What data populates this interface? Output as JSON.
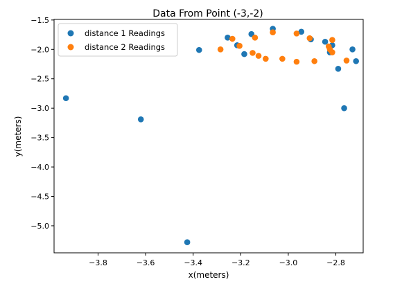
{
  "chart_data": {
    "type": "scatter",
    "title": "Data From Point (-3,-2)",
    "xlabel": "x(meters)",
    "ylabel": "y(meters)",
    "xlim": [
      -3.985,
      -2.685
    ],
    "ylim": [
      -5.46,
      -1.49
    ],
    "xticks": [
      -3.8,
      -3.6,
      -3.4,
      -3.2,
      -3.0,
      -2.8
    ],
    "xtick_labels": [
      "−3.8",
      "−3.6",
      "−3.4",
      "−3.2",
      "−3.0",
      "−2.8"
    ],
    "yticks": [
      -1.5,
      -2.0,
      -2.5,
      -3.0,
      -3.5,
      -4.0,
      -4.5,
      -5.0
    ],
    "ytick_labels": [
      "−1.5",
      "−2.0",
      "−2.5",
      "−3.0",
      "−3.5",
      "−4.0",
      "−4.5",
      "−5.0"
    ],
    "grid": false,
    "legend_position": "top-left",
    "series": [
      {
        "name": "distance 1 Readings",
        "color": "#1f77b4",
        "points": [
          [
            -3.935,
            -2.83
          ],
          [
            -3.62,
            -3.19
          ],
          [
            -3.425,
            -5.28
          ],
          [
            -3.375,
            -2.01
          ],
          [
            -3.255,
            -1.8
          ],
          [
            -3.215,
            -1.93
          ],
          [
            -3.185,
            -2.08
          ],
          [
            -3.155,
            -1.74
          ],
          [
            -3.065,
            -1.65
          ],
          [
            -2.945,
            -1.7
          ],
          [
            -2.905,
            -1.83
          ],
          [
            -2.845,
            -1.87
          ],
          [
            -2.825,
            -2.05
          ],
          [
            -2.815,
            -1.93
          ],
          [
            -2.79,
            -2.33
          ],
          [
            -2.765,
            -3.0
          ],
          [
            -2.73,
            -2.0
          ],
          [
            -2.715,
            -2.2
          ]
        ]
      },
      {
        "name": "distance 2 Readings",
        "color": "#ff7f0e",
        "points": [
          [
            -3.285,
            -2.0
          ],
          [
            -3.235,
            -1.82
          ],
          [
            -3.205,
            -1.94
          ],
          [
            -3.15,
            -2.06
          ],
          [
            -3.14,
            -1.8
          ],
          [
            -3.125,
            -2.11
          ],
          [
            -3.095,
            -2.16
          ],
          [
            -3.065,
            -1.71
          ],
          [
            -3.025,
            -2.16
          ],
          [
            -2.965,
            -1.73
          ],
          [
            -2.965,
            -2.21
          ],
          [
            -2.91,
            -1.81
          ],
          [
            -2.89,
            -2.2
          ],
          [
            -2.83,
            -1.95
          ],
          [
            -2.825,
            -2.0
          ],
          [
            -2.815,
            -2.05
          ],
          [
            -2.815,
            -1.84
          ],
          [
            -2.755,
            -2.19
          ]
        ]
      }
    ]
  }
}
